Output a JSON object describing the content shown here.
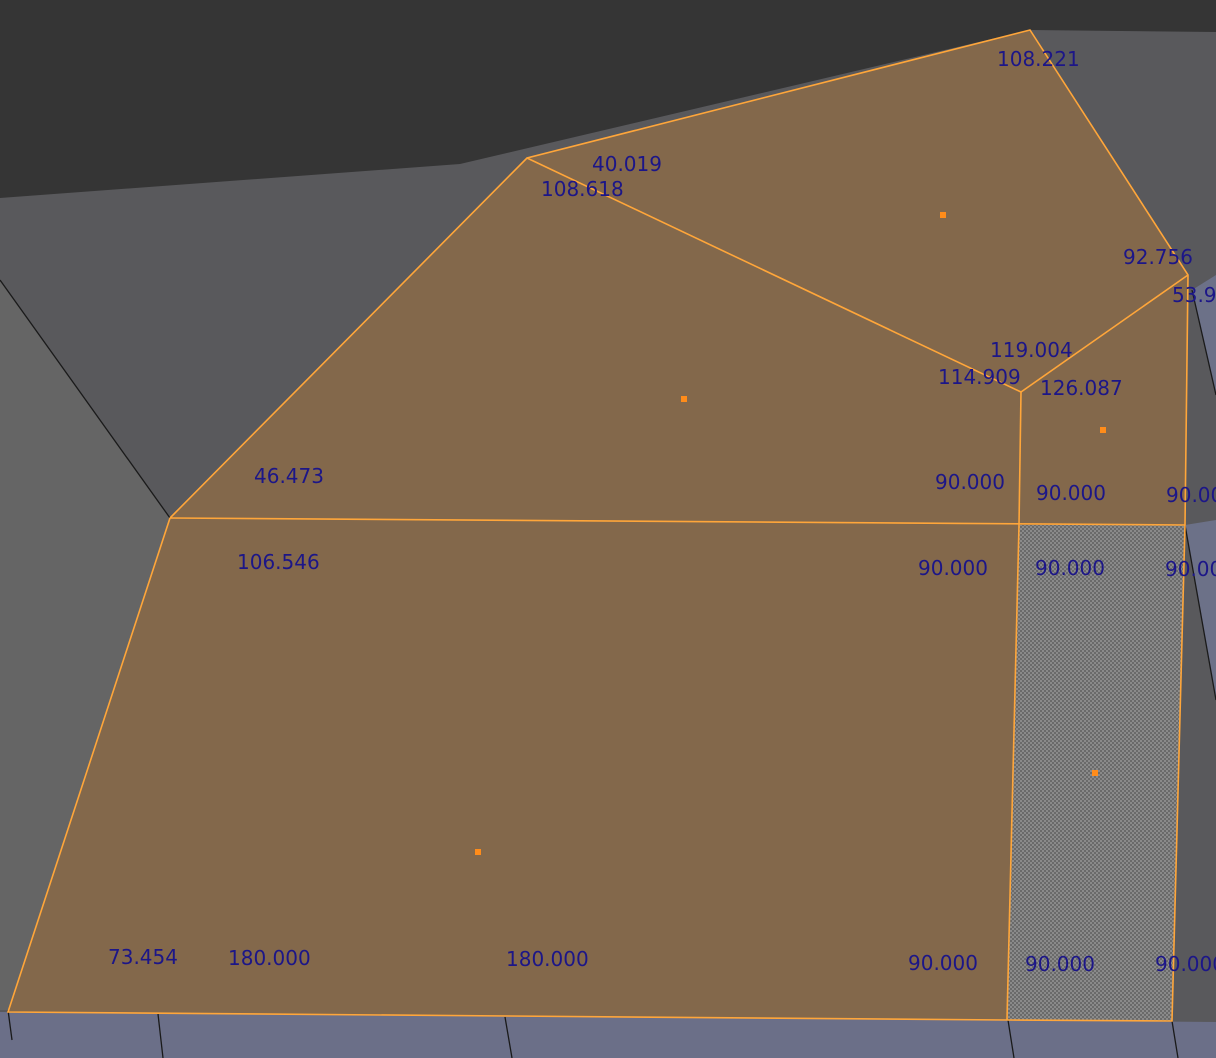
{
  "viewport": {
    "name": "3D Viewport - Edit Mode",
    "colors": {
      "background_dark": "#353535",
      "surface_gray": "#5b5b5f",
      "surface_blue": "#6b6f88",
      "selected_face": "#83684b",
      "selected_edge": "#ffa63a",
      "face_center": "#ff8c1a",
      "label": "#1c1688"
    }
  },
  "selection": {
    "faces_selected": 5,
    "hatched_face": "right-bottom strip (face selected, displayed with hatch pattern)"
  },
  "angle_labels": {
    "top_right_corner": "108.221",
    "top_left_a": "40.019",
    "top_left_b": "108.618",
    "right_upper": "92.756",
    "right_edge_clipped": "53.9",
    "center_a": "119.004",
    "center_b": "114.909",
    "center_c": "126.087",
    "left_mid": "46.473",
    "mid_a": "90.000",
    "mid_b": "90.000",
    "mid_c_clipped": "90.00",
    "left_lower": "106.546",
    "lower_a": "90.000",
    "lower_b": "90.000",
    "lower_c_clipped": "90.00",
    "bottom_left": "73.454",
    "bottom_a": "180.000",
    "bottom_b": "180.000",
    "bottom_c": "90.000",
    "bottom_d": "90.000",
    "bottom_e_clipped": "90.000"
  }
}
